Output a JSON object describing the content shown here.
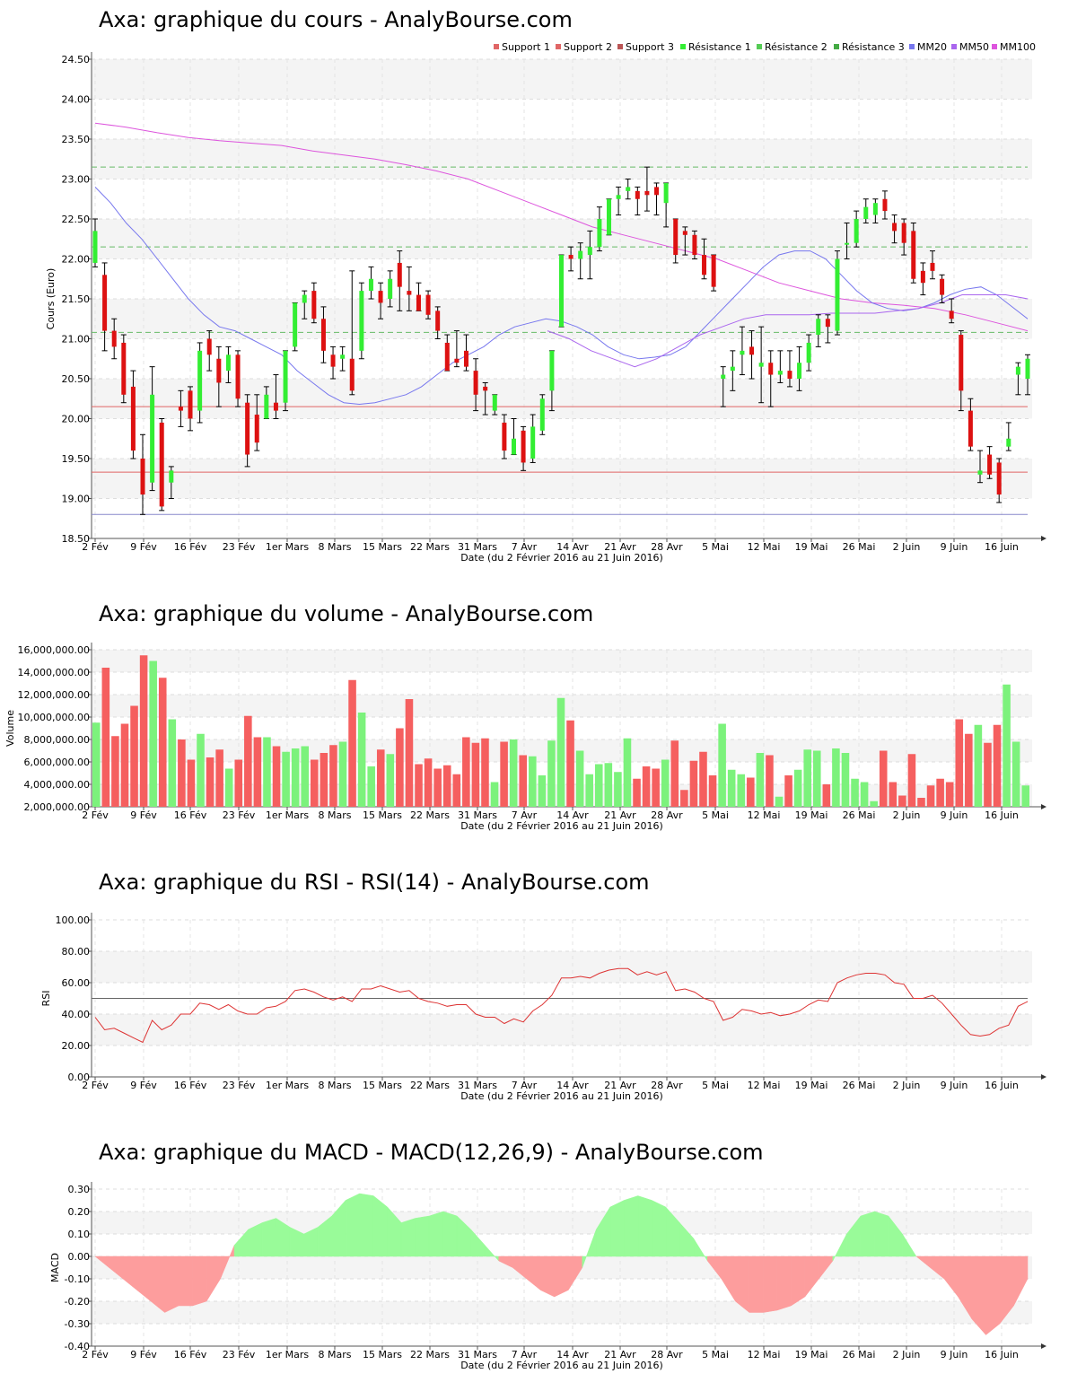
{
  "colors": {
    "up": "#33ee33",
    "down": "#dd1111",
    "vol_up": "#7cf27c",
    "vol_down": "#f55f5f",
    "macd_pos": "#99fb99",
    "macd_neg": "#fd9d9d",
    "mm20": "#7777ee",
    "mm50": "#aa66ee",
    "mm100": "#dd55dd",
    "support": "#e06666",
    "support3": "#8888cc",
    "resistance": "#66bb66",
    "rsi": "#dd3333"
  },
  "price_chart": {
    "title": "Axa: graphique du cours - AnalyBourse.com",
    "ylabel": "Cours (Euro)",
    "xlabel": "Date (du 2 Février 2016 au 21 Juin 2016)",
    "legend": [
      "Support 1",
      "Support 2",
      "Support 3",
      "Résistance 1",
      "Résistance 2",
      "Résistance 3",
      "MM20",
      "MM50",
      "MM100"
    ],
    "yticks": [
      "24.50",
      "24.00",
      "23.50",
      "23.00",
      "22.50",
      "22.00",
      "21.50",
      "21.00",
      "20.50",
      "20.00",
      "19.50",
      "19.00",
      "18.50"
    ]
  },
  "volume_chart": {
    "title": "Axa: graphique du volume - AnalyBourse.com",
    "ylabel": "Volume",
    "xlabel": "Date (du 2 Février 2016 au 21 Juin 2016)",
    "yticks": [
      "16,000,000.00",
      "14,000,000.00",
      "12,000,000.00",
      "10,000,000.00",
      "8,000,000.00",
      "6,000,000.00",
      "4,000,000.00",
      "2,000,000.00"
    ]
  },
  "rsi_chart": {
    "title": "Axa: graphique du RSI - RSI(14) - AnalyBourse.com",
    "ylabel": "RSI",
    "xlabel": "Date (du 2 Février 2016 au 21 Juin 2016)",
    "yticks": [
      "100.00",
      "80.00",
      "60.00",
      "40.00",
      "20.00",
      "0.00"
    ]
  },
  "macd_chart": {
    "title": "Axa: graphique du MACD - MACD(12,26,9) - AnalyBourse.com",
    "ylabel": "MACD",
    "xlabel": "Date (du 2 Février 2016 au 21 Juin 2016)",
    "yticks": [
      "0.30",
      "0.20",
      "0.10",
      "0.00",
      "-0.10",
      "-0.20",
      "-0.30",
      "-0.40"
    ]
  },
  "chart_data": [
    {
      "type": "candlestick",
      "title": "Axa: graphique du cours - AnalyBourse.com",
      "xlabel": "Date (du 2 Février 2016 au 21 Juin 2016)",
      "ylabel": "Cours (Euro)",
      "ylim": [
        18.5,
        24.5
      ],
      "x_ticks": [
        "2 Fév",
        "9 Fév",
        "16 Fév",
        "23 Fév",
        "1er Mars",
        "8 Mars",
        "15 Mars",
        "22 Mars",
        "31 Mars",
        "7 Avr",
        "14 Avr",
        "21 Avr",
        "28 Avr",
        "5 Mai",
        "12 Mai",
        "19 Mai",
        "26 Mai",
        "2 Juin",
        "9 Juin",
        "16 Juin"
      ],
      "lines": {
        "Support 1": 20.15,
        "Support 2": 19.33,
        "Support 3": 18.8,
        "Résistance 1": 21.08,
        "Résistance 2": 22.15,
        "Résistance 3": 23.15
      },
      "candles": [
        [
          21.95,
          22.35,
          22.5,
          21.9
        ],
        [
          21.8,
          21.1,
          21.95,
          20.85
        ],
        [
          21.1,
          20.9,
          21.25,
          20.75
        ],
        [
          20.95,
          20.3,
          21.05,
          20.2
        ],
        [
          20.4,
          19.6,
          20.6,
          19.5
        ],
        [
          19.5,
          19.05,
          19.8,
          18.8
        ],
        [
          19.2,
          20.3,
          20.65,
          19.1
        ],
        [
          19.95,
          18.9,
          20.0,
          18.85
        ],
        [
          19.2,
          19.35,
          19.4,
          19.0
        ],
        [
          20.15,
          20.1,
          20.35,
          19.9
        ],
        [
          20.35,
          20.0,
          20.4,
          19.85
        ],
        [
          20.1,
          20.85,
          20.95,
          19.95
        ],
        [
          21.0,
          20.8,
          21.1,
          20.6
        ],
        [
          20.75,
          20.45,
          20.9,
          20.15
        ],
        [
          20.6,
          20.8,
          20.9,
          20.45
        ],
        [
          20.8,
          20.25,
          20.85,
          20.15
        ],
        [
          20.2,
          19.55,
          20.3,
          19.4
        ],
        [
          20.05,
          19.7,
          20.3,
          19.6
        ],
        [
          20.0,
          20.3,
          20.4,
          20.0
        ],
        [
          20.2,
          20.1,
          20.55,
          20.0
        ],
        [
          20.2,
          20.85,
          20.85,
          20.1
        ],
        [
          20.9,
          21.45,
          21.45,
          20.85
        ],
        [
          21.45,
          21.55,
          21.6,
          21.25
        ],
        [
          21.6,
          21.25,
          21.7,
          21.2
        ],
        [
          21.25,
          20.85,
          21.4,
          20.7
        ],
        [
          20.8,
          20.65,
          20.9,
          20.5
        ],
        [
          20.75,
          20.8,
          20.9,
          20.6
        ],
        [
          20.75,
          20.35,
          21.85,
          20.3
        ],
        [
          20.85,
          21.6,
          21.7,
          20.75
        ],
        [
          21.6,
          21.75,
          21.9,
          21.5
        ],
        [
          21.6,
          21.45,
          21.7,
          21.25
        ],
        [
          21.5,
          21.75,
          21.85,
          21.4
        ],
        [
          21.95,
          21.65,
          22.1,
          21.35
        ],
        [
          21.6,
          21.55,
          21.9,
          21.35
        ],
        [
          21.55,
          21.35,
          21.7,
          21.35
        ],
        [
          21.55,
          21.3,
          21.6,
          21.25
        ],
        [
          21.35,
          21.1,
          21.4,
          21.0
        ],
        [
          20.95,
          20.6,
          21.05,
          20.6
        ],
        [
          20.75,
          20.7,
          21.1,
          20.65
        ],
        [
          20.85,
          20.65,
          21.05,
          20.6
        ],
        [
          20.6,
          20.3,
          20.75,
          20.1
        ],
        [
          20.4,
          20.35,
          20.45,
          20.05
        ],
        [
          20.1,
          20.3,
          20.3,
          20.05
        ],
        [
          19.95,
          19.6,
          20.05,
          19.5
        ],
        [
          19.55,
          19.75,
          20.0,
          19.55
        ],
        [
          19.85,
          19.45,
          19.9,
          19.35
        ],
        [
          19.5,
          19.9,
          20.05,
          19.45
        ],
        [
          19.85,
          20.25,
          20.3,
          19.8
        ],
        [
          20.35,
          20.85,
          20.85,
          20.1
        ],
        [
          21.15,
          22.05,
          22.05,
          21.15
        ],
        [
          22.05,
          22.0,
          22.15,
          21.85
        ],
        [
          22.0,
          22.1,
          22.2,
          21.75
        ],
        [
          22.05,
          22.15,
          22.35,
          21.75
        ],
        [
          22.15,
          22.5,
          22.65,
          22.1
        ],
        [
          22.3,
          22.75,
          22.75,
          22.3
        ],
        [
          22.75,
          22.8,
          22.9,
          22.55
        ],
        [
          22.85,
          22.9,
          23.0,
          22.75
        ],
        [
          22.85,
          22.75,
          22.9,
          22.55
        ],
        [
          22.85,
          22.8,
          23.15,
          22.6
        ],
        [
          22.9,
          22.8,
          22.95,
          22.55
        ],
        [
          22.7,
          22.95,
          22.95,
          22.4
        ],
        [
          22.5,
          22.05,
          22.5,
          21.95
        ],
        [
          22.35,
          22.3,
          22.4,
          22.05
        ],
        [
          22.3,
          22.05,
          22.35,
          22.0
        ],
        [
          22.05,
          21.8,
          22.25,
          21.75
        ],
        [
          22.05,
          21.65,
          22.05,
          21.6
        ],
        [
          20.5,
          20.55,
          20.65,
          20.15
        ],
        [
          20.6,
          20.65,
          20.85,
          20.35
        ],
        [
          20.8,
          20.85,
          21.15,
          20.55
        ],
        [
          20.9,
          20.8,
          21.1,
          20.5
        ],
        [
          20.65,
          20.7,
          21.15,
          20.2
        ],
        [
          20.7,
          20.55,
          20.85,
          20.15
        ],
        [
          20.55,
          20.6,
          20.85,
          20.45
        ],
        [
          20.6,
          20.5,
          20.85,
          20.4
        ],
        [
          20.5,
          20.7,
          20.9,
          20.35
        ],
        [
          20.7,
          20.95,
          21.05,
          20.6
        ],
        [
          21.05,
          21.25,
          21.3,
          20.9
        ],
        [
          21.25,
          21.15,
          21.3,
          20.95
        ],
        [
          21.1,
          22.0,
          22.1,
          21.05
        ],
        [
          22.2,
          22.2,
          22.45,
          22.0
        ],
        [
          22.2,
          22.5,
          22.6,
          22.15
        ],
        [
          22.5,
          22.65,
          22.75,
          22.45
        ],
        [
          22.55,
          22.7,
          22.75,
          22.45
        ],
        [
          22.75,
          22.6,
          22.85,
          22.5
        ],
        [
          22.45,
          22.35,
          22.55,
          22.2
        ],
        [
          22.45,
          22.2,
          22.5,
          22.05
        ],
        [
          22.35,
          21.75,
          22.45,
          21.7
        ],
        [
          21.85,
          21.7,
          21.95,
          21.55
        ],
        [
          21.95,
          21.85,
          22.1,
          21.75
        ],
        [
          21.75,
          21.55,
          21.8,
          21.45
        ],
        [
          21.35,
          21.25,
          21.5,
          21.2
        ],
        [
          21.05,
          20.35,
          21.1,
          20.1
        ],
        [
          20.1,
          19.65,
          20.25,
          19.6
        ],
        [
          19.3,
          19.35,
          19.6,
          19.2
        ],
        [
          19.55,
          19.3,
          19.65,
          19.25
        ],
        [
          19.45,
          19.05,
          19.5,
          18.95
        ],
        [
          19.65,
          19.75,
          19.95,
          19.6
        ],
        [
          20.55,
          20.65,
          20.7,
          20.3
        ],
        [
          20.5,
          20.75,
          20.8,
          20.3
        ]
      ],
      "series": [
        {
          "name": "MM20",
          "values": [
            22.9,
            22.7,
            22.45,
            22.25,
            22.0,
            21.75,
            21.5,
            21.3,
            21.15,
            21.1,
            21.0,
            20.9,
            20.8,
            20.6,
            20.45,
            20.3,
            20.2,
            20.18,
            20.2,
            20.25,
            20.3,
            20.4,
            20.55,
            20.7,
            20.8,
            20.9,
            21.05,
            21.15,
            21.2,
            21.25,
            21.22,
            21.15,
            21.05,
            20.9,
            20.8,
            20.75,
            20.77,
            20.8,
            20.9,
            21.1,
            21.3,
            21.5,
            21.7,
            21.9,
            22.05,
            22.1,
            22.1,
            22.0,
            21.8,
            21.6,
            21.45,
            21.38,
            21.35,
            21.38,
            21.45,
            21.55,
            21.62,
            21.65,
            21.55,
            21.4,
            21.25
          ]
        },
        {
          "name": "MM50",
          "values": [
            21.1,
            21.0,
            20.85,
            20.75,
            20.65,
            20.75,
            20.9,
            21.05,
            21.15,
            21.25,
            21.3,
            21.3,
            21.3,
            21.32,
            21.32,
            21.32,
            21.35,
            21.38,
            21.45,
            21.55,
            21.55,
            21.55,
            21.5
          ]
        },
        {
          "name": "MM100",
          "values": [
            23.7,
            23.65,
            23.58,
            23.52,
            23.48,
            23.45,
            23.42,
            23.35,
            23.3,
            23.25,
            23.18,
            23.1,
            23.0,
            22.85,
            22.7,
            22.55,
            22.4,
            22.3,
            22.2,
            22.1,
            22.0,
            21.85,
            21.7,
            21.6,
            21.5,
            21.45,
            21.42,
            21.38,
            21.3,
            21.2,
            21.1
          ]
        }
      ]
    },
    {
      "type": "bar",
      "title": "Axa: graphique du volume - AnalyBourse.com",
      "xlabel": "Date (du 2 Février 2016 au 21 Juin 2016)",
      "ylabel": "Volume",
      "ylim": [
        2000000,
        16000000
      ],
      "values": [
        9500000,
        14400000,
        8300000,
        9400000,
        11000000,
        15500000,
        15000000,
        13500000,
        9800000,
        8000000,
        6200000,
        8500000,
        6400000,
        7100000,
        5400000,
        6200000,
        10100000,
        8200000,
        8200000,
        7400000,
        6900000,
        7200000,
        7400000,
        6200000,
        6800000,
        7500000,
        7800000,
        13300000,
        10400000,
        5600000,
        7100000,
        6700000,
        9000000,
        11600000,
        5800000,
        6300000,
        5400000,
        5700000,
        4900000,
        8200000,
        7700000,
        8100000,
        4200000,
        7800000,
        8000000,
        6600000,
        6500000,
        4800000,
        7900000,
        11700000,
        9700000,
        7000000,
        4900000,
        5800000,
        5900000,
        5100000,
        8100000,
        4500000,
        5600000,
        5400000,
        6200000,
        7900000,
        3500000,
        6100000,
        6900000,
        4800000,
        9400000,
        5300000,
        4900000,
        4600000,
        6800000,
        6600000,
        2900000,
        4800000,
        5300000,
        7100000,
        7000000,
        4000000,
        7200000,
        6800000,
        4500000,
        4200000,
        2500000,
        7000000,
        4200000,
        3000000,
        6700000,
        2800000,
        3900000,
        4500000,
        4200000,
        9800000,
        8500000,
        9300000,
        7700000,
        9300000,
        12900000,
        7800000,
        3900000
      ]
    },
    {
      "type": "line",
      "title": "Axa: graphique du RSI - RSI(14) - AnalyBourse.com",
      "xlabel": "Date (du 2 Février 2016 au 21 Juin 2016)",
      "ylabel": "RSI",
      "ylim": [
        0,
        100
      ],
      "reference": 50,
      "values": [
        38,
        30,
        31,
        28,
        25,
        22,
        36,
        30,
        33,
        40,
        40,
        47,
        46,
        43,
        46,
        42,
        40,
        40,
        44,
        45,
        48,
        55,
        56,
        54,
        51,
        49,
        51,
        48,
        56,
        56,
        58,
        56,
        54,
        55,
        50,
        48,
        47,
        45,
        46,
        46,
        40,
        38,
        38,
        34,
        37,
        35,
        42,
        46,
        52,
        63,
        63,
        64,
        63,
        66,
        68,
        69,
        69,
        65,
        67,
        65,
        67,
        55,
        56,
        54,
        50,
        48,
        36,
        38,
        43,
        42,
        40,
        41,
        39,
        40,
        42,
        46,
        49,
        48,
        60,
        63,
        65,
        66,
        66,
        65,
        60,
        59,
        50,
        50,
        52,
        47,
        40,
        33,
        27,
        26,
        27,
        31,
        33,
        45,
        48
      ]
    },
    {
      "type": "area",
      "title": "Axa: graphique du MACD - MACD(12,26,9) - AnalyBourse.com",
      "xlabel": "Date (du 2 Février 2016 au 21 Juin 2016)",
      "ylabel": "MACD",
      "ylim": [
        -0.4,
        0.3
      ],
      "values": [
        0,
        -0.05,
        -0.1,
        -0.15,
        -0.2,
        -0.25,
        -0.22,
        -0.22,
        -0.2,
        -0.1,
        0.05,
        0.12,
        0.15,
        0.17,
        0.13,
        0.1,
        0.13,
        0.18,
        0.25,
        0.28,
        0.27,
        0.22,
        0.15,
        0.17,
        0.18,
        0.2,
        0.18,
        0.12,
        0.05,
        -0.02,
        -0.05,
        -0.1,
        -0.15,
        -0.18,
        -0.15,
        -0.05,
        0.12,
        0.22,
        0.25,
        0.27,
        0.25,
        0.22,
        0.15,
        0.08,
        -0.02,
        -0.1,
        -0.2,
        -0.25,
        -0.25,
        -0.24,
        -0.22,
        -0.18,
        -0.1,
        -0.02,
        0.1,
        0.18,
        0.2,
        0.18,
        0.1,
        0,
        -0.05,
        -0.1,
        -0.18,
        -0.28,
        -0.35,
        -0.3,
        -0.22,
        -0.1
      ]
    }
  ]
}
